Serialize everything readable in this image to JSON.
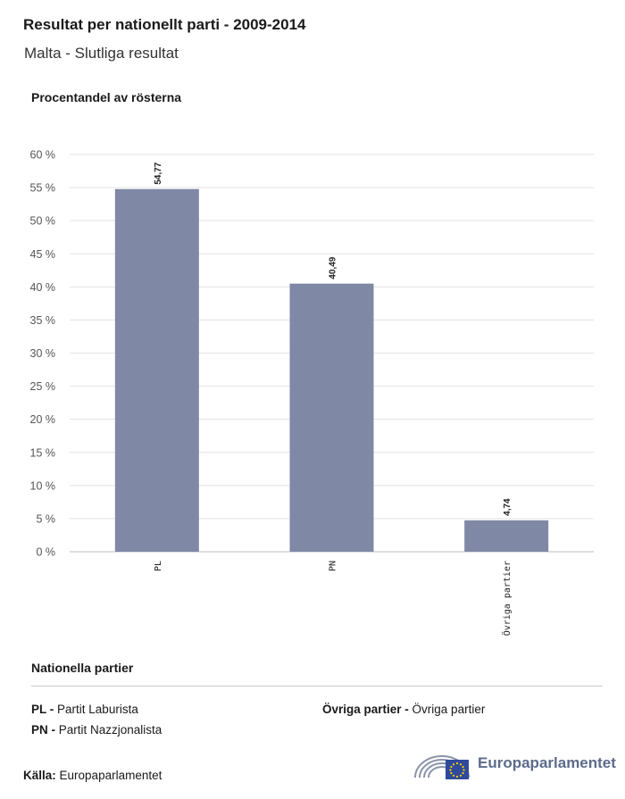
{
  "header": {
    "title": "Resultat per nationellt parti - 2009-2014",
    "subtitle": "Malta - Slutliga resultat"
  },
  "chart_data": {
    "type": "bar",
    "ylabel": "Procentandel av rösterna",
    "categories": [
      "PL",
      "PN",
      "Övriga partier"
    ],
    "values": [
      54.77,
      40.49,
      4.74
    ],
    "value_labels": [
      "54,77",
      "40,49",
      "4,74"
    ],
    "ylim": [
      0,
      60
    ],
    "yticks": [
      "0 %",
      "5 %",
      "10 %",
      "15 %",
      "20 %",
      "25 %",
      "30 %",
      "35 %",
      "40 %",
      "45 %",
      "50 %",
      "55 %",
      "60 %"
    ],
    "bar_color": "#7f88a5",
    "grid": true
  },
  "legend": {
    "title": "Nationella partier",
    "items": [
      {
        "abbr": "PL -",
        "name": "Partit Laburista"
      },
      {
        "abbr": "PN -",
        "name": "Partit Nazzjonalista"
      },
      {
        "abbr": "Övriga partier -",
        "name": "Övriga partier"
      }
    ]
  },
  "footer": {
    "source_label": "Källa:",
    "source_value": "Europaparlamentet",
    "logo_text": "Europaparlamentet"
  },
  "colors": {
    "bar": "#7f88a5",
    "grid": "#e3e3e3",
    "logo_blue": "#2f4a9a",
    "logo_gray": "#5c6b8a"
  }
}
